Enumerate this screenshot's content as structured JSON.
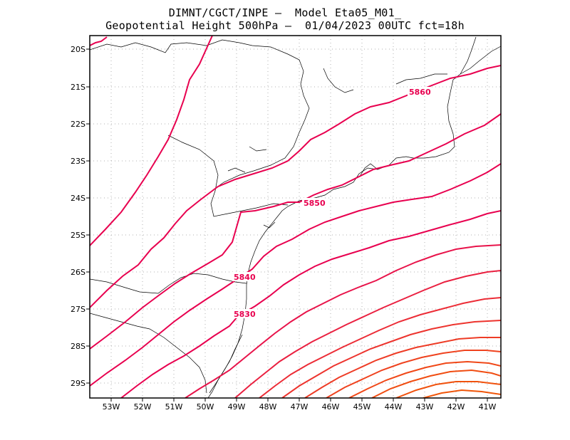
{
  "header": {
    "line1": "DIMNT/CGCT/INPE –  Model Eta05_M01_",
    "line2": "Geopotential Height 500hPa –  01/04/2023 00UTC fct=18h"
  },
  "map": {
    "lon_range": [
      -53.6,
      -40.6
    ],
    "lat_range": [
      -29.4,
      -19.9
    ],
    "lon_ticks": [
      "53W",
      "52W",
      "51W",
      "50W",
      "49W",
      "48W",
      "47W",
      "46W",
      "45W",
      "44W",
      "43W",
      "42W",
      "41W"
    ],
    "lat_ticks": [
      "20S",
      "21S",
      "22S",
      "23S",
      "24S",
      "25S",
      "26S",
      "27S",
      "28S",
      "29S"
    ],
    "grid": "dotted",
    "contour_interval": 10
  },
  "contour_labels": [
    {
      "text": "5860",
      "color": "#e8004f"
    },
    {
      "text": "5850",
      "color": "#e8004f"
    },
    {
      "text": "5840",
      "color": "#e8004f"
    },
    {
      "text": "5830",
      "color": "#e8004f"
    }
  ],
  "colors": {
    "contour_high": "#e8004f",
    "contour_low": "#f04a00",
    "coast": "#000000",
    "grid": "#b0b0b0"
  }
}
